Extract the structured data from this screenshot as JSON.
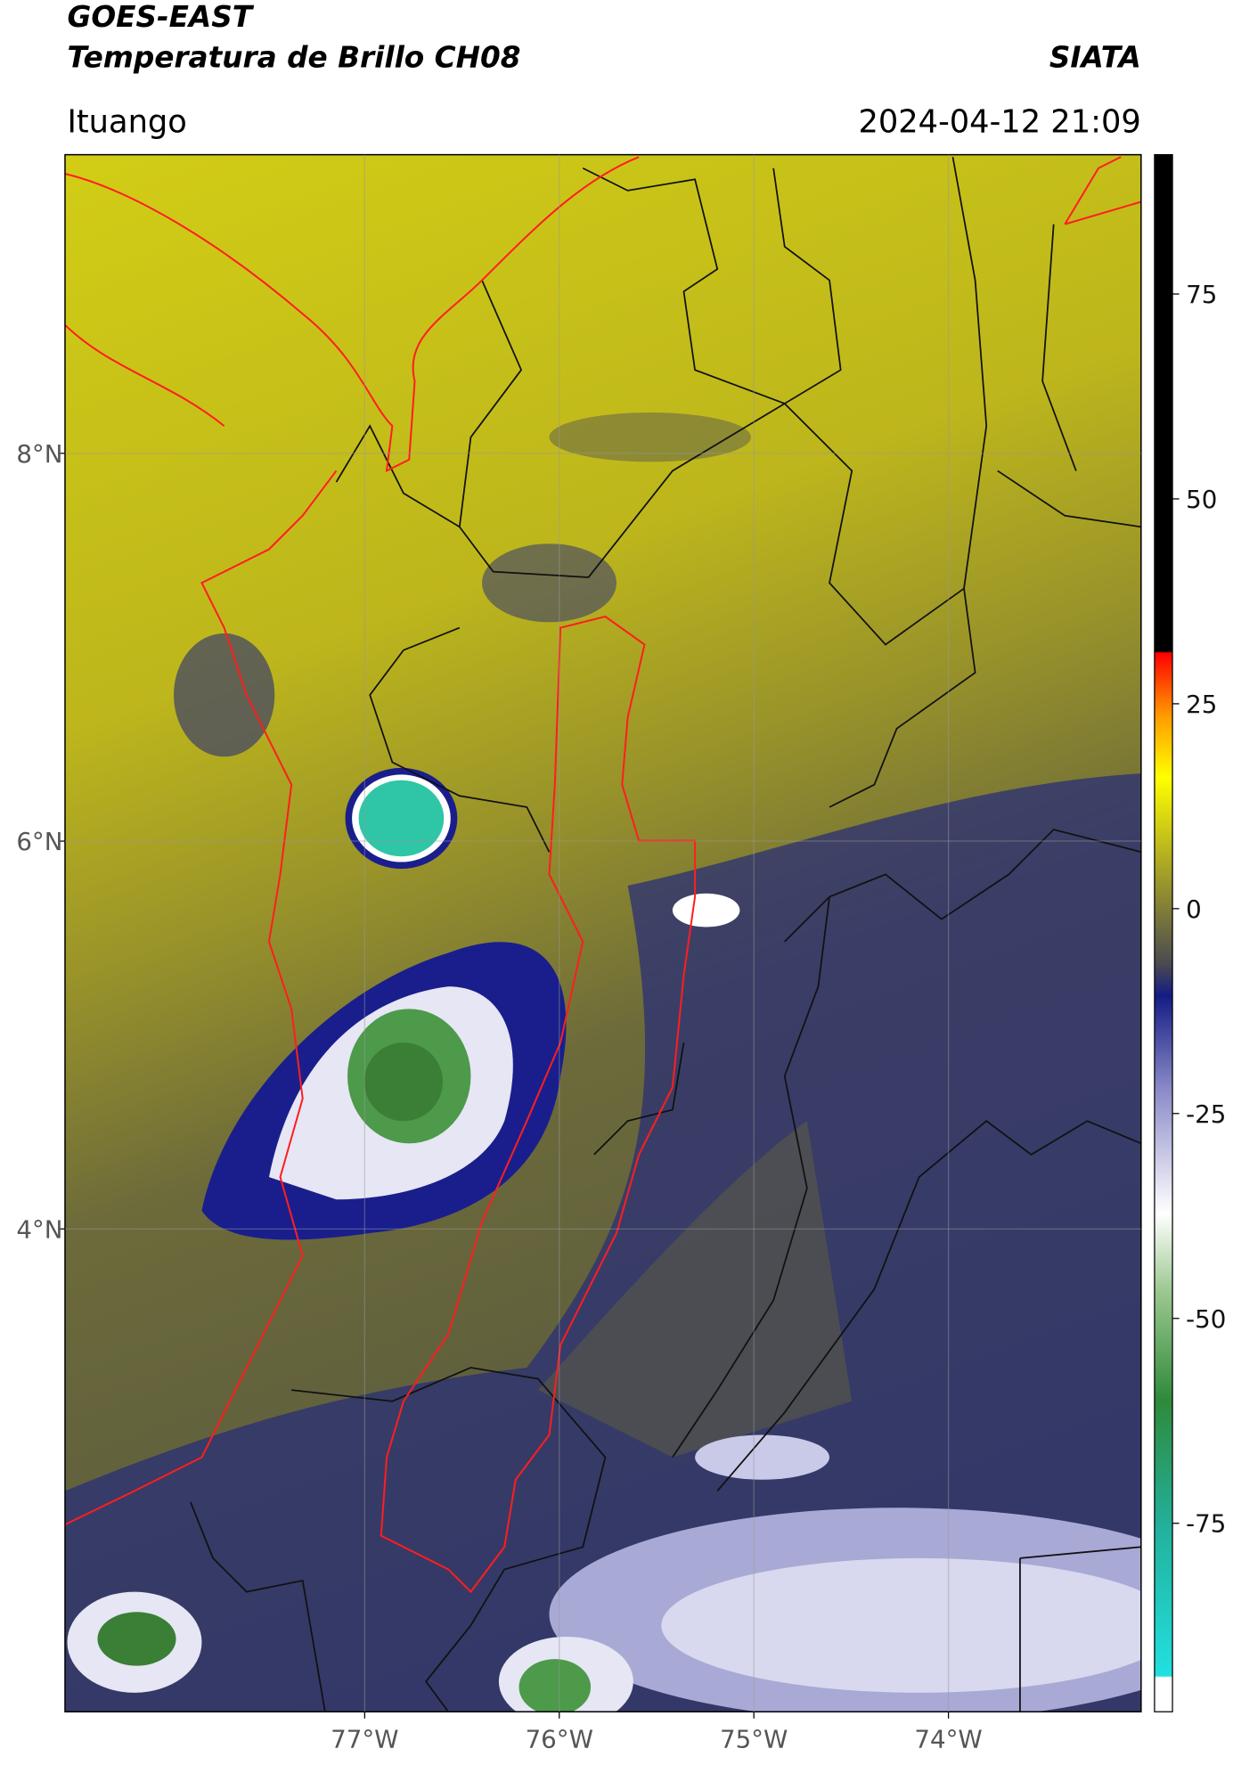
{
  "chart_data": {
    "type": "map",
    "title": "GOES-EAST",
    "subtitle": "Temperatura de Brillo CH08",
    "brand": "SIATA",
    "region": "Ituango",
    "timestamp": "2024-04-12 21:09",
    "xlim": [
      -78.54,
      -73.01
    ],
    "ylim": [
      1.51,
      9.54
    ],
    "xticks": [
      {
        "value": -77,
        "label": "77°W"
      },
      {
        "value": -76,
        "label": "76°W"
      },
      {
        "value": -75,
        "label": "75°W"
      },
      {
        "value": -74,
        "label": "74°W"
      }
    ],
    "yticks": [
      {
        "value": 8,
        "label": "8°N"
      },
      {
        "value": 6,
        "label": "6°N"
      },
      {
        "value": 4,
        "label": "4°N"
      }
    ],
    "grid": true,
    "colorbar": {
      "lim": [
        -98,
        92
      ],
      "ticks": [
        75,
        50,
        25,
        0,
        -25,
        -50,
        -75
      ]
    }
  }
}
